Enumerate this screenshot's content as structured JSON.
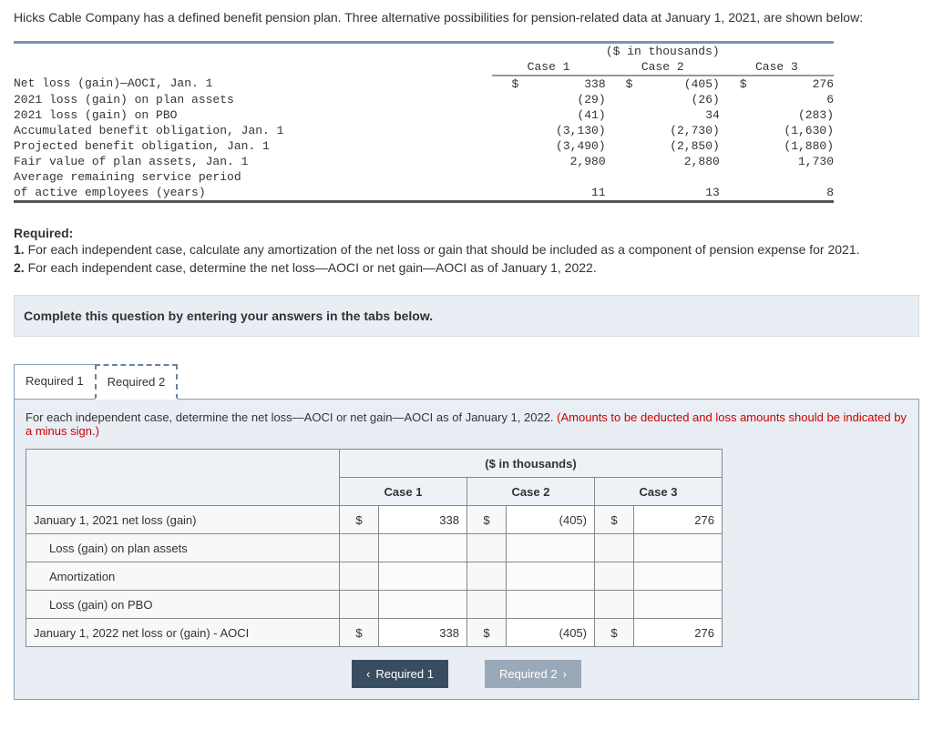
{
  "intro": "Hicks Cable Company has a defined benefit pension plan. Three alternative possibilities for pension-related data at January 1, 2021, are shown below:",
  "dataTable": {
    "unitsHeader": "($ in thousands)",
    "colHeaders": [
      "Case 1",
      "Case 2",
      "Case 3"
    ],
    "currency": "$",
    "rows": [
      {
        "label": "Net loss (gain)—AOCI, Jan. 1",
        "cur": true,
        "vals": [
          "338",
          "(405)",
          "276"
        ]
      },
      {
        "label": "2021 loss (gain) on plan assets",
        "cur": false,
        "vals": [
          "(29)",
          "(26)",
          "6"
        ]
      },
      {
        "label": "2021 loss (gain) on PBO",
        "cur": false,
        "vals": [
          "(41)",
          "34",
          "(283)"
        ]
      },
      {
        "label": "Accumulated benefit obligation, Jan. 1",
        "cur": false,
        "vals": [
          "(3,130)",
          "(2,730)",
          "(1,630)"
        ]
      },
      {
        "label": "Projected benefit obligation, Jan. 1",
        "cur": false,
        "vals": [
          "(3,490)",
          "(2,850)",
          "(1,880)"
        ]
      },
      {
        "label": "Fair value of plan assets, Jan. 1",
        "cur": false,
        "vals": [
          "2,980",
          "2,880",
          "1,730"
        ]
      },
      {
        "label": "Average remaining service period",
        "cur": false,
        "vals": [
          "",
          "",
          ""
        ]
      },
      {
        "label": "of active employees (years)",
        "cur": false,
        "vals": [
          "11",
          "13",
          "8"
        ]
      }
    ]
  },
  "required": {
    "head": "Required:",
    "line1a": "1.",
    "line1b": " For each independent case, calculate any amortization of the net loss or gain that should be included as a component of pension expense for 2021.",
    "line2a": "2.",
    "line2b": " For each independent case, determine the net loss—AOCI or net gain—AOCI as of January 1, 2022."
  },
  "instruction": "Complete this question by entering your answers in the tabs below.",
  "tabs": {
    "t1": "Required 1",
    "t2": "Required 2"
  },
  "panel": {
    "textMain": "For each independent case, determine the net loss—AOCI or net gain—AOCI as of January 1, 2022. ",
    "textRed": "(Amounts to be deducted and loss amounts should be indicated by a minus sign.)"
  },
  "answerTable": {
    "unitsHeader": "($ in thousands)",
    "colHeaders": [
      "Case 1",
      "Case 2",
      "Case 3"
    ],
    "currency": "$",
    "rows": [
      {
        "label": "January 1, 2021 net loss (gain)",
        "indent": false,
        "cur": true,
        "vals": [
          "338",
          "(405)",
          "276"
        ]
      },
      {
        "label": "Loss (gain) on plan assets",
        "indent": true,
        "cur": false,
        "vals": [
          "",
          "",
          ""
        ]
      },
      {
        "label": "Amortization",
        "indent": true,
        "cur": false,
        "vals": [
          "",
          "",
          ""
        ]
      },
      {
        "label": "Loss (gain) on PBO",
        "indent": true,
        "cur": false,
        "vals": [
          "",
          "",
          ""
        ]
      },
      {
        "label": "January 1, 2022 net loss or (gain) - AOCI",
        "indent": false,
        "cur": true,
        "vals": [
          "338",
          "(405)",
          "276"
        ]
      }
    ]
  },
  "nav": {
    "prev": "Required 1",
    "next": "Required 2"
  }
}
